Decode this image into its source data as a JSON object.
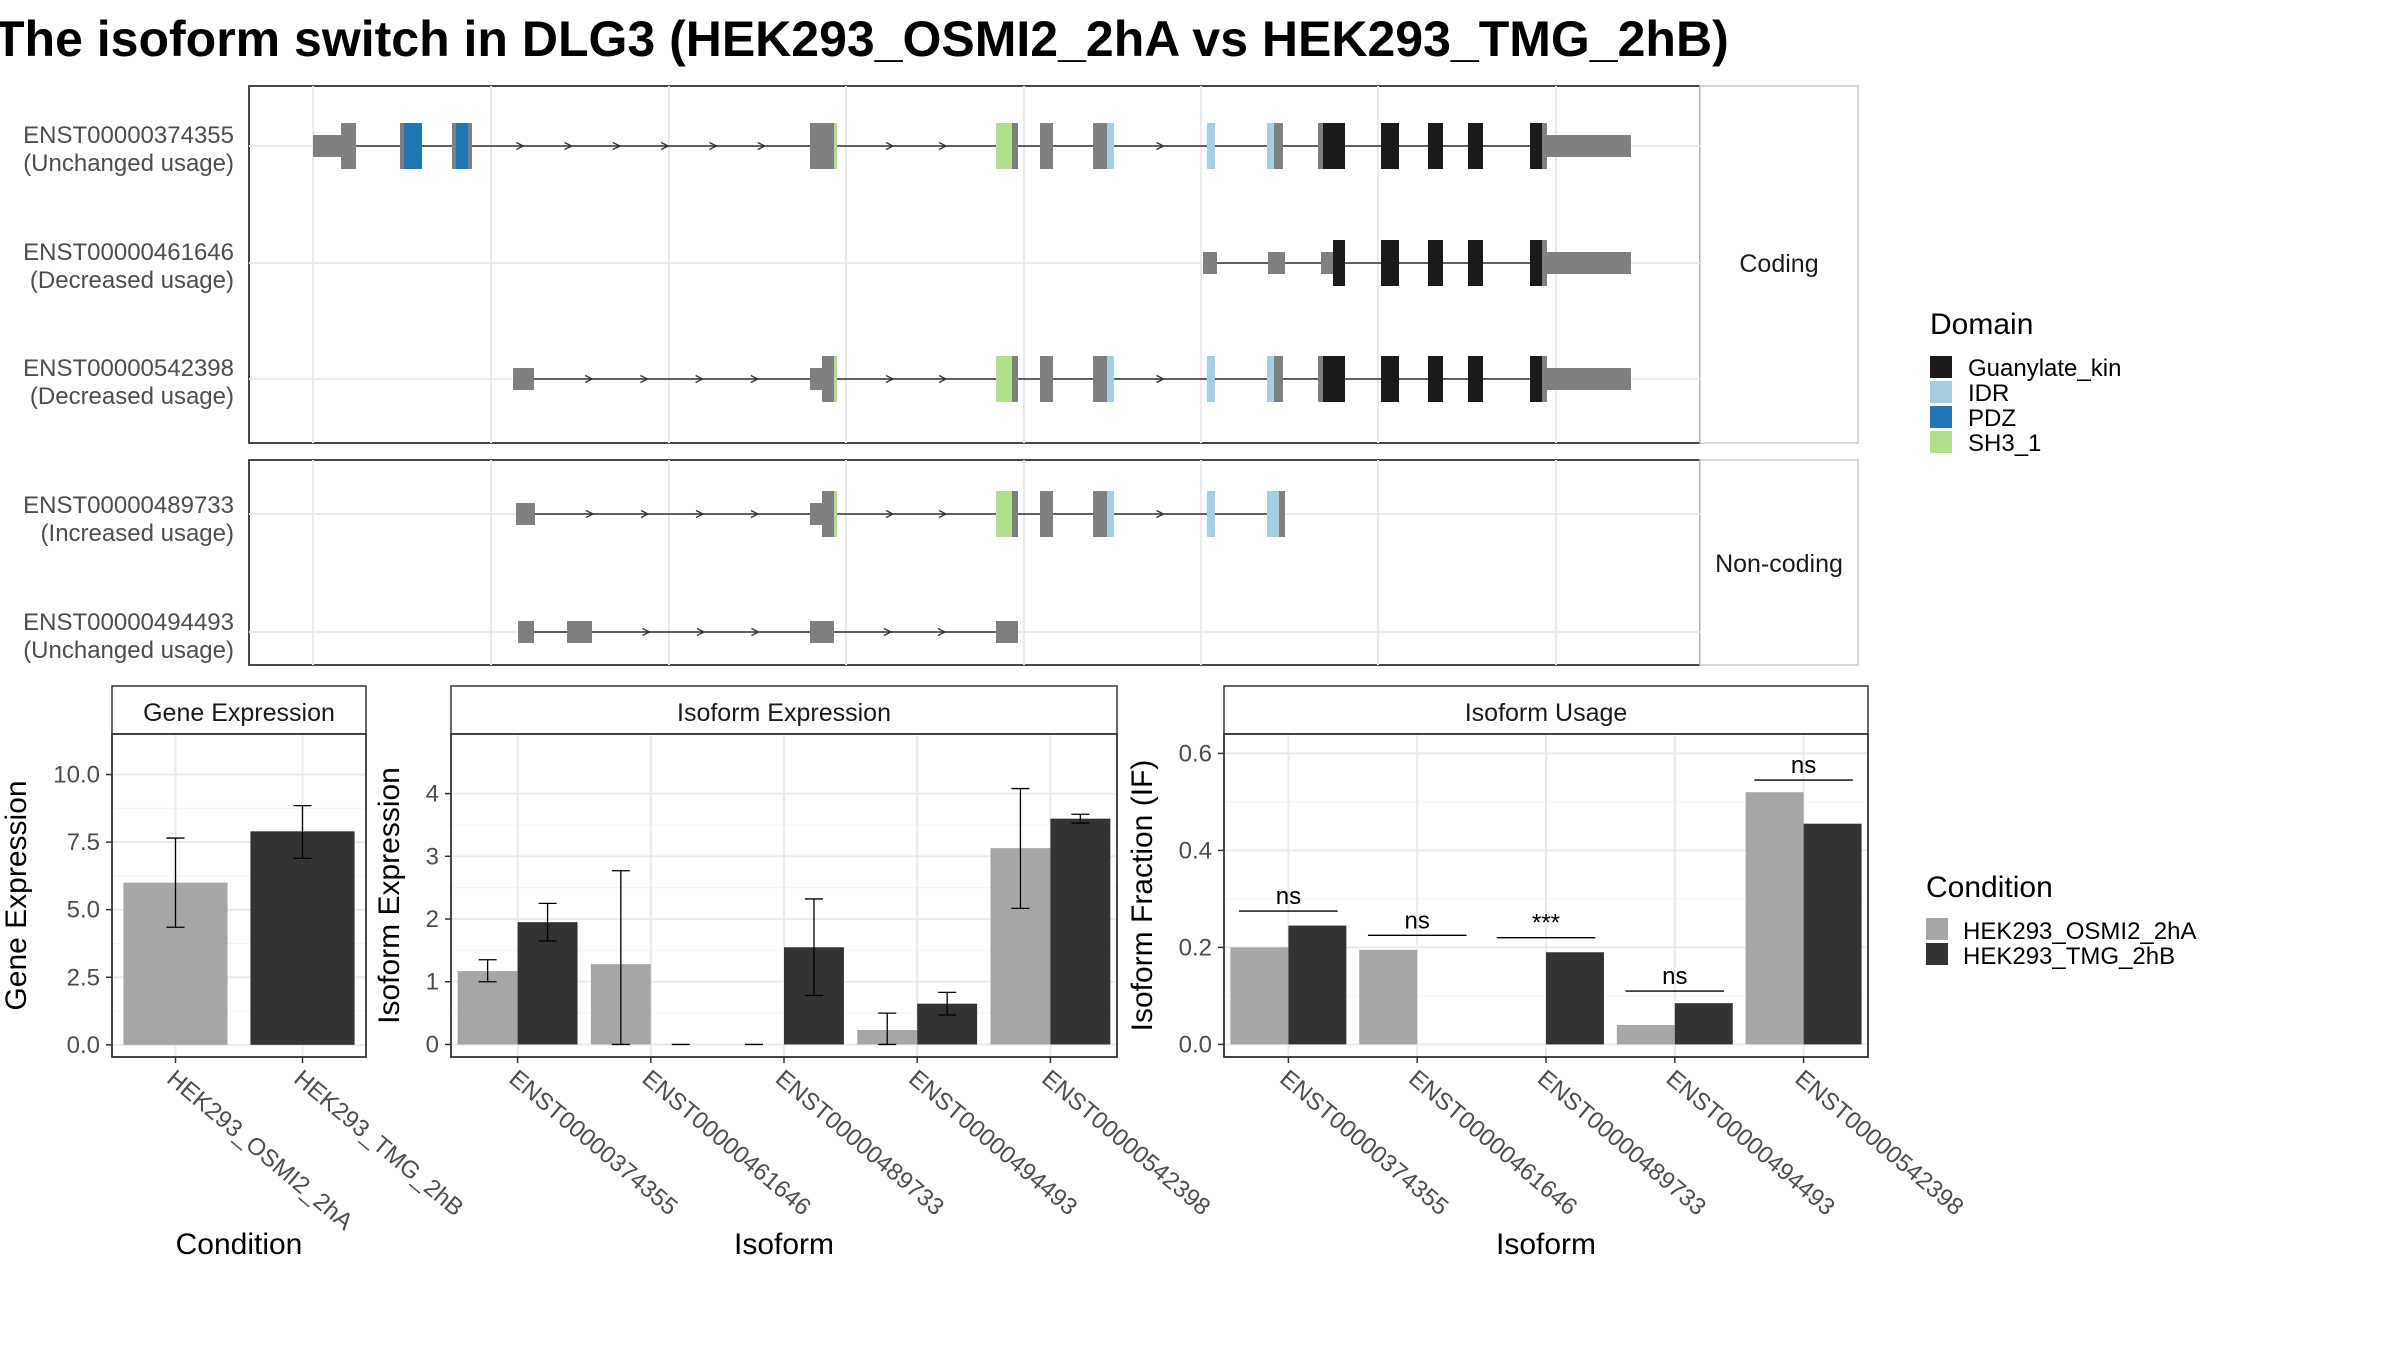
{
  "title": "The isoform switch in DLG3 (HEK293_OSMI2_2hA vs HEK293_TMG_2hB)",
  "structure": {
    "facets": [
      "Coding",
      "Non-coding"
    ],
    "isoforms": [
      {
        "id": "ENST00000374355",
        "usage": "(Unchanged usage)"
      },
      {
        "id": "ENST00000461646",
        "usage": "(Decreased usage)"
      },
      {
        "id": "ENST00000542398",
        "usage": "(Decreased usage)"
      },
      {
        "id": "ENST00000489733",
        "usage": "(Increased usage)"
      },
      {
        "id": "ENST00000494493",
        "usage": "(Unchanged usage)"
      }
    ],
    "domain_legend": {
      "title": "Domain",
      "items": [
        {
          "name": "Guanylate_kin",
          "color": "#1a1a1a"
        },
        {
          "name": "IDR",
          "color": "#a6cee3"
        },
        {
          "name": "PDZ",
          "color": "#1f78b4"
        },
        {
          "name": "SH3_1",
          "color": "#b2df8a"
        }
      ]
    },
    "exon_color": "#7f7f7f"
  },
  "condition_legend": {
    "title": "Condition",
    "items": [
      {
        "name": "HEK293_OSMI2_2hA",
        "color": "#a6a6a6"
      },
      {
        "name": "HEK293_TMG_2hB",
        "color": "#333333"
      }
    ]
  },
  "chart_data": [
    {
      "type": "bar",
      "title": "Gene Expression",
      "xlabel": "Condition",
      "ylabel": "Gene Expression",
      "categories": [
        "HEK293_OSMI2_2hA",
        "HEK293_TMG_2hB"
      ],
      "values": [
        6.0,
        7.9
      ],
      "errors": [
        [
          4.35,
          7.65
        ],
        [
          6.9,
          8.85
        ]
      ],
      "ylim": [
        -0.45,
        11.5
      ],
      "yticks": [
        "0.0",
        "2.5",
        "5.0",
        "7.5",
        "10.0"
      ]
    },
    {
      "type": "bar",
      "title": "Isoform Expression",
      "xlabel": "Isoform",
      "ylabel": "Isoform Expression",
      "categories": [
        "ENST00000374355",
        "ENST00000461646",
        "ENST00000489733",
        "ENST00000494493",
        "ENST00000542398"
      ],
      "series": [
        {
          "name": "HEK293_OSMI2_2hA",
          "values": [
            1.17,
            1.28,
            0.0,
            0.23,
            3.13
          ],
          "errors": [
            [
              1.0,
              1.35
            ],
            [
              0.0,
              2.77
            ],
            [
              0.0,
              0.0
            ],
            [
              0.0,
              0.5
            ],
            [
              2.17,
              4.08
            ]
          ]
        },
        {
          "name": "HEK293_TMG_2hB",
          "values": [
            1.95,
            0.0,
            1.55,
            0.65,
            3.6
          ],
          "errors": [
            [
              1.65,
              2.25
            ],
            [
              0.0,
              0.0
            ],
            [
              0.78,
              2.32
            ],
            [
              0.47,
              0.83
            ],
            [
              3.53,
              3.67
            ]
          ]
        }
      ],
      "ylim": [
        -0.2,
        4.95
      ],
      "yticks": [
        "0",
        "1",
        "2",
        "3",
        "4"
      ]
    },
    {
      "type": "bar",
      "title": "Isoform Usage",
      "xlabel": "Isoform",
      "ylabel": "Isoform Fraction (IF)",
      "categories": [
        "ENST00000374355",
        "ENST00000461646",
        "ENST00000489733",
        "ENST00000494493",
        "ENST00000542398"
      ],
      "series": [
        {
          "name": "HEK293_OSMI2_2hA",
          "values": [
            0.2,
            0.195,
            0.0,
            0.04,
            0.52
          ]
        },
        {
          "name": "HEK293_TMG_2hB",
          "values": [
            0.245,
            0.0,
            0.19,
            0.085,
            0.455
          ]
        }
      ],
      "significance": [
        "ns",
        "ns",
        "***",
        "ns",
        "ns"
      ],
      "sig_line_y": [
        0.275,
        0.225,
        0.22,
        0.11,
        0.545
      ],
      "ylim": [
        -0.026,
        0.64
      ],
      "yticks": [
        "0.0",
        "0.2",
        "0.4",
        "0.6"
      ]
    }
  ]
}
